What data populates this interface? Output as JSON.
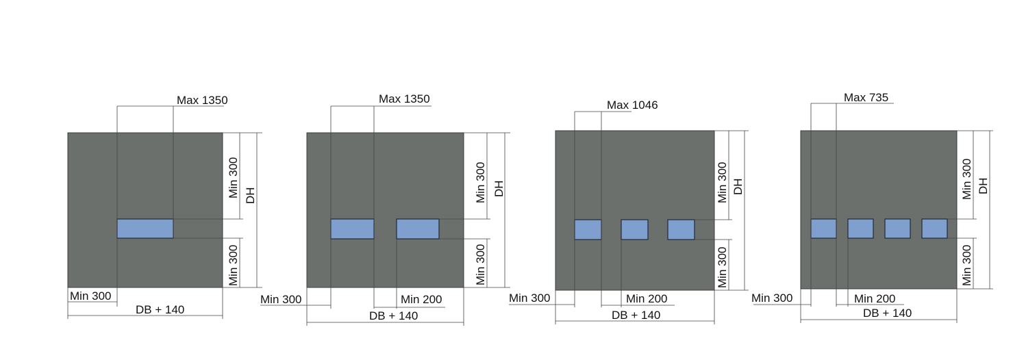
{
  "diagrams": [
    {
      "max_label": "Max 1350",
      "dh_label": "DH",
      "min_top_label": "Min 300",
      "min_bottom_label": "Min 300",
      "min_side_label": "Min 300",
      "db_label": "DB + 140",
      "window_count": 1
    },
    {
      "max_label": "Max 1350",
      "dh_label": "DH",
      "min_top_label": "Min 300",
      "min_bottom_label": "Min 300",
      "min_side_label": "Min 300",
      "gap_label": "Min 200",
      "db_label": "DB + 140",
      "window_count": 2
    },
    {
      "max_label": "Max 1046",
      "dh_label": "DH",
      "min_top_label": "Min 300",
      "min_bottom_label": "Min 300",
      "min_side_label": "Min 300",
      "gap_label": "Min 200",
      "db_label": "DB + 140",
      "window_count": 3
    },
    {
      "max_label": "Max 735",
      "dh_label": "DH",
      "min_top_label": "Min 300",
      "min_bottom_label": "Min 300",
      "min_side_label": "Min 300",
      "gap_label": "Min 200",
      "db_label": "DB + 140",
      "window_count": 4
    }
  ],
  "colors": {
    "door_panel": "#6c706d",
    "window_glass": "#7f9fcf",
    "line": "#444444"
  }
}
